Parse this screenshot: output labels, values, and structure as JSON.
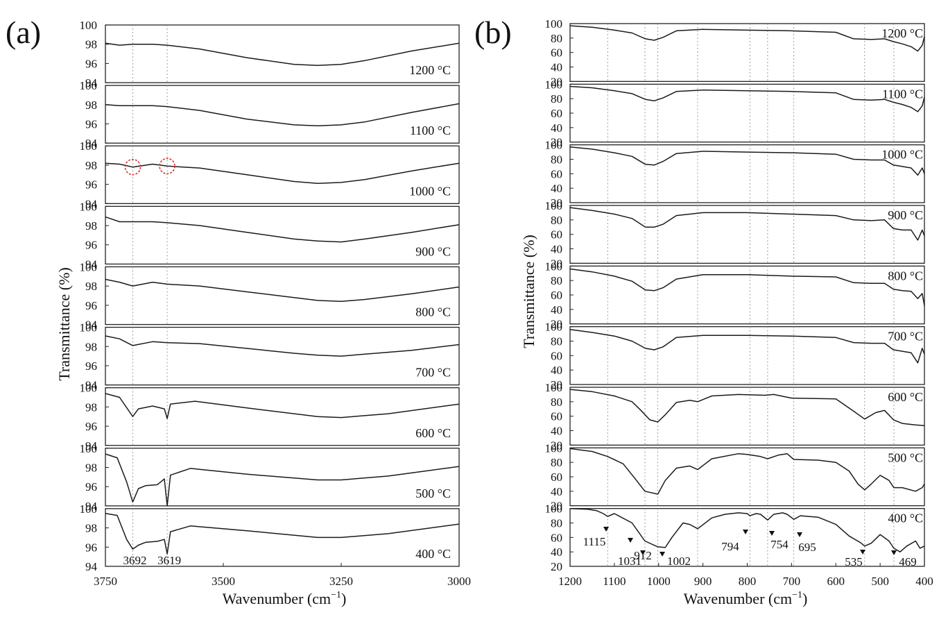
{
  "figure": {
    "panels": [
      {
        "letter": "(a)",
        "xlabel": "Wavenumber (cm",
        "xlabel_sup": "−1",
        "xlabel_end": ")",
        "ylabel": "Transmittance (%)",
        "x_ticks": [
          "3750",
          "3500",
          "3250",
          "3000"
        ],
        "y_ticks": [
          "94",
          "96",
          "98",
          "100"
        ]
      },
      {
        "letter": "(b)",
        "xlabel": "Wavenumber (cm",
        "xlabel_sup": "−1",
        "xlabel_end": ")",
        "ylabel": "Transmittance (%)",
        "x_ticks": [
          "1200",
          "1100",
          "1000",
          "900",
          "800",
          "700",
          "600",
          "500",
          "400"
        ],
        "y_ticks": [
          "20",
          "40",
          "60",
          "80",
          "100"
        ]
      }
    ]
  },
  "chart_data": [
    {
      "type": "line",
      "panel": "(a)",
      "xlabel": "Wavenumber (cm−1)",
      "ylabel": "Transmittance (%)",
      "xlim": [
        3750,
        3000
      ],
      "ylim": [
        94,
        100
      ],
      "x_reversed": true,
      "grid": false,
      "reference_lines": [
        3692,
        3619
      ],
      "highlight_circles": {
        "series": "1000 °C",
        "x": [
          3692,
          3619
        ],
        "color": "#e03030"
      },
      "annotations": [
        {
          "text": "3692",
          "x": 3692
        },
        {
          "text": "3619",
          "x": 3619
        }
      ],
      "series": [
        {
          "name": "1200 °C",
          "x": [
            3750,
            3720,
            3692,
            3650,
            3619,
            3550,
            3450,
            3350,
            3300,
            3250,
            3200,
            3100,
            3000
          ],
          "y": [
            98.1,
            97.9,
            98.0,
            98.0,
            97.9,
            97.5,
            96.6,
            95.9,
            95.8,
            95.9,
            96.3,
            97.3,
            98.1
          ]
        },
        {
          "name": "1100 °C",
          "x": [
            3750,
            3720,
            3692,
            3650,
            3619,
            3550,
            3450,
            3350,
            3300,
            3250,
            3200,
            3100,
            3000
          ],
          "y": [
            98.0,
            97.9,
            97.9,
            97.9,
            97.8,
            97.4,
            96.5,
            95.9,
            95.8,
            95.9,
            96.2,
            97.2,
            98.1
          ]
        },
        {
          "name": "1000 °C",
          "x": [
            3750,
            3720,
            3692,
            3650,
            3619,
            3550,
            3450,
            3350,
            3300,
            3250,
            3200,
            3100,
            3000
          ],
          "y": [
            98.2,
            98.1,
            97.8,
            98.1,
            97.9,
            97.7,
            97.0,
            96.3,
            96.1,
            96.2,
            96.5,
            97.4,
            98.2
          ]
        },
        {
          "name": "900 °C",
          "x": [
            3750,
            3720,
            3692,
            3650,
            3619,
            3550,
            3450,
            3350,
            3300,
            3250,
            3200,
            3100,
            3000
          ],
          "y": [
            98.9,
            98.4,
            98.4,
            98.4,
            98.3,
            98.0,
            97.3,
            96.6,
            96.4,
            96.3,
            96.6,
            97.3,
            98.1
          ]
        },
        {
          "name": "800 °C",
          "x": [
            3750,
            3720,
            3692,
            3650,
            3619,
            3550,
            3450,
            3350,
            3300,
            3250,
            3200,
            3100,
            3000
          ],
          "y": [
            98.7,
            98.4,
            98.0,
            98.4,
            98.2,
            98.0,
            97.4,
            96.8,
            96.5,
            96.4,
            96.6,
            97.2,
            97.9
          ]
        },
        {
          "name": "700 °C",
          "x": [
            3750,
            3720,
            3692,
            3650,
            3619,
            3550,
            3450,
            3350,
            3300,
            3250,
            3200,
            3100,
            3000
          ],
          "y": [
            99.1,
            98.8,
            98.1,
            98.5,
            98.4,
            98.3,
            97.8,
            97.3,
            97.1,
            97.0,
            97.2,
            97.6,
            98.2
          ]
        },
        {
          "name": "600 °C",
          "x": [
            3750,
            3720,
            3692,
            3680,
            3650,
            3625,
            3619,
            3612,
            3560,
            3450,
            3300,
            3250,
            3150,
            3000
          ],
          "y": [
            99.4,
            99.0,
            97.0,
            97.8,
            98.1,
            97.8,
            96.8,
            98.3,
            98.6,
            97.9,
            97.0,
            96.9,
            97.3,
            98.3
          ]
        },
        {
          "name": "500 °C",
          "x": [
            3750,
            3725,
            3705,
            3692,
            3680,
            3665,
            3640,
            3625,
            3619,
            3612,
            3570,
            3450,
            3300,
            3250,
            3150,
            3000
          ],
          "y": [
            99.4,
            99.0,
            96.5,
            94.4,
            95.8,
            96.1,
            96.2,
            96.8,
            94.0,
            97.2,
            97.9,
            97.3,
            96.7,
            96.7,
            97.1,
            98.1
          ]
        },
        {
          "name": "400 °C",
          "x": [
            3750,
            3725,
            3705,
            3692,
            3680,
            3665,
            3640,
            3625,
            3619,
            3612,
            3570,
            3450,
            3300,
            3250,
            3150,
            3000
          ],
          "y": [
            99.5,
            99.3,
            96.8,
            95.8,
            96.2,
            96.5,
            96.6,
            96.8,
            95.3,
            97.6,
            98.2,
            97.7,
            97.0,
            97.0,
            97.4,
            98.4
          ]
        }
      ]
    },
    {
      "type": "line",
      "panel": "(b)",
      "xlabel": "Wavenumber (cm−1)",
      "ylabel": "Transmittance (%)",
      "xlim": [
        1200,
        400
      ],
      "ylim": [
        20,
        100
      ],
      "x_reversed": true,
      "grid": false,
      "reference_lines": [
        1115,
        1031,
        1002,
        912,
        794,
        754,
        695,
        535,
        469
      ],
      "annotations": [
        {
          "text": "1115",
          "x": 1115
        },
        {
          "text": "1031",
          "x": 1031
        },
        {
          "text": "1002",
          "x": 1002
        },
        {
          "text": "912",
          "x": 912
        },
        {
          "text": "794",
          "x": 794
        },
        {
          "text": "754",
          "x": 754
        },
        {
          "text": "695",
          "x": 695
        },
        {
          "text": "535",
          "x": 535
        },
        {
          "text": "469",
          "x": 469
        }
      ],
      "series": [
        {
          "name": "1200 °C",
          "x": [
            1200,
            1150,
            1100,
            1060,
            1030,
            1010,
            990,
            960,
            900,
            800,
            700,
            600,
            560,
            520,
            490,
            470,
            450,
            430,
            415,
            405,
            400
          ],
          "y": [
            97,
            95,
            91,
            87,
            79,
            77,
            81,
            90,
            92,
            91,
            90,
            88,
            79,
            78,
            79,
            75,
            72,
            68,
            62,
            70,
            82
          ]
        },
        {
          "name": "1100 °C",
          "x": [
            1200,
            1150,
            1100,
            1060,
            1030,
            1010,
            990,
            960,
            900,
            800,
            700,
            600,
            560,
            520,
            490,
            470,
            450,
            430,
            415,
            405,
            400
          ],
          "y": [
            97,
            95,
            91,
            87,
            79,
            77,
            81,
            90,
            92,
            91,
            90,
            88,
            79,
            78,
            79,
            75,
            72,
            68,
            62,
            70,
            82
          ]
        },
        {
          "name": "1000 °C",
          "x": [
            1200,
            1150,
            1100,
            1060,
            1030,
            1010,
            990,
            960,
            900,
            800,
            700,
            600,
            560,
            520,
            490,
            470,
            450,
            430,
            415,
            405,
            400
          ],
          "y": [
            97,
            94,
            89,
            84,
            73,
            72,
            77,
            88,
            91,
            90,
            89,
            87,
            80,
            79,
            79,
            72,
            70,
            68,
            58,
            68,
            60
          ]
        },
        {
          "name": "900 °C",
          "x": [
            1200,
            1150,
            1100,
            1060,
            1030,
            1010,
            990,
            960,
            900,
            800,
            700,
            600,
            560,
            520,
            490,
            470,
            450,
            430,
            415,
            405,
            400
          ],
          "y": [
            97,
            93,
            88,
            82,
            70,
            70,
            74,
            86,
            90,
            90,
            88,
            86,
            80,
            79,
            80,
            68,
            66,
            66,
            52,
            66,
            58
          ]
        },
        {
          "name": "800 °C",
          "x": [
            1200,
            1150,
            1100,
            1060,
            1030,
            1010,
            990,
            960,
            900,
            800,
            700,
            600,
            560,
            520,
            490,
            470,
            450,
            430,
            415,
            405,
            400
          ],
          "y": [
            96,
            92,
            86,
            79,
            67,
            66,
            70,
            82,
            88,
            88,
            86,
            85,
            77,
            76,
            76,
            68,
            66,
            65,
            55,
            62,
            45
          ]
        },
        {
          "name": "700 °C",
          "x": [
            1200,
            1150,
            1100,
            1060,
            1030,
            1010,
            990,
            960,
            900,
            800,
            700,
            600,
            560,
            520,
            490,
            470,
            450,
            430,
            415,
            405,
            400
          ],
          "y": [
            96,
            92,
            87,
            80,
            70,
            68,
            72,
            85,
            88,
            88,
            87,
            85,
            78,
            77,
            77,
            68,
            66,
            64,
            50,
            70,
            62
          ]
        },
        {
          "name": "600 °C",
          "x": [
            1200,
            1150,
            1100,
            1060,
            1040,
            1020,
            1002,
            985,
            960,
            930,
            912,
            880,
            820,
            760,
            740,
            700,
            600,
            560,
            535,
            510,
            490,
            470,
            450,
            420,
            400
          ],
          "y": [
            97,
            94,
            88,
            80,
            68,
            55,
            52,
            62,
            79,
            82,
            80,
            88,
            90,
            89,
            90,
            85,
            84,
            67,
            56,
            65,
            68,
            55,
            50,
            48,
            47
          ]
        },
        {
          "name": "500 °C",
          "x": [
            1200,
            1150,
            1115,
            1080,
            1050,
            1031,
            1002,
            985,
            960,
            930,
            912,
            880,
            820,
            800,
            770,
            754,
            730,
            710,
            695,
            640,
            600,
            570,
            550,
            535,
            520,
            500,
            480,
            469,
            450,
            420,
            405,
            400
          ],
          "y": [
            99,
            95,
            88,
            78,
            55,
            40,
            36,
            55,
            72,
            75,
            70,
            85,
            92,
            91,
            88,
            85,
            90,
            92,
            84,
            83,
            80,
            68,
            50,
            42,
            50,
            62,
            55,
            45,
            45,
            40,
            45,
            50
          ]
        },
        {
          "name": "400 °C",
          "x": [
            1200,
            1160,
            1140,
            1125,
            1115,
            1100,
            1060,
            1031,
            1002,
            985,
            970,
            945,
            930,
            912,
            880,
            850,
            820,
            800,
            794,
            780,
            770,
            754,
            740,
            720,
            710,
            695,
            680,
            640,
            600,
            570,
            545,
            535,
            520,
            500,
            480,
            469,
            455,
            440,
            420,
            410,
            400
          ],
          "y": [
            100,
            99,
            97,
            93,
            89,
            93,
            80,
            55,
            47,
            46,
            60,
            80,
            78,
            72,
            87,
            92,
            94,
            93,
            90,
            93,
            92,
            84,
            92,
            94,
            92,
            85,
            90,
            88,
            78,
            62,
            53,
            48,
            52,
            64,
            55,
            45,
            40,
            48,
            55,
            45,
            48
          ]
        }
      ]
    }
  ]
}
